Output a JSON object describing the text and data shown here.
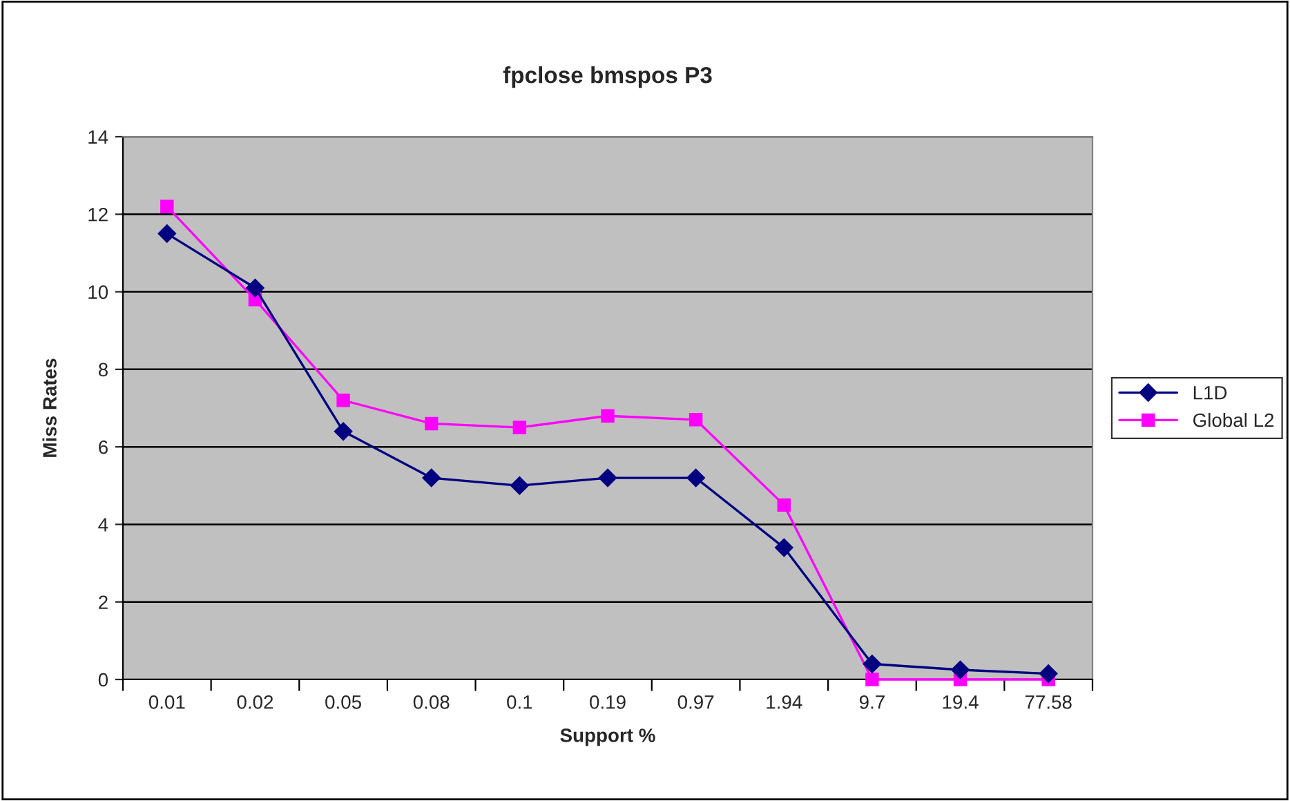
{
  "chart_data": {
    "type": "line",
    "title": "fpclose bmspos P3",
    "xlabel": "Support %",
    "ylabel": "Miss Rates",
    "categories": [
      "0.01",
      "0.02",
      "0.05",
      "0.08",
      "0.1",
      "0.19",
      "0.97",
      "1.94",
      "9.7",
      "19.4",
      "77.58"
    ],
    "series": [
      {
        "name": "L1D",
        "color": "#000080",
        "marker": "diamond",
        "values": [
          11.5,
          10.1,
          6.4,
          5.2,
          5.0,
          5.2,
          5.2,
          3.4,
          0.4,
          0.25,
          0.15
        ]
      },
      {
        "name": "Global L2",
        "color": "#ff00ff",
        "marker": "square",
        "values": [
          12.2,
          9.8,
          7.2,
          6.6,
          6.5,
          6.8,
          6.7,
          4.5,
          0,
          0,
          0
        ]
      }
    ],
    "ylim": [
      0,
      14
    ],
    "yticks": [
      0,
      2,
      4,
      6,
      8,
      10,
      12,
      14
    ],
    "grid": "y",
    "legend": "right",
    "line_style": "solid"
  }
}
